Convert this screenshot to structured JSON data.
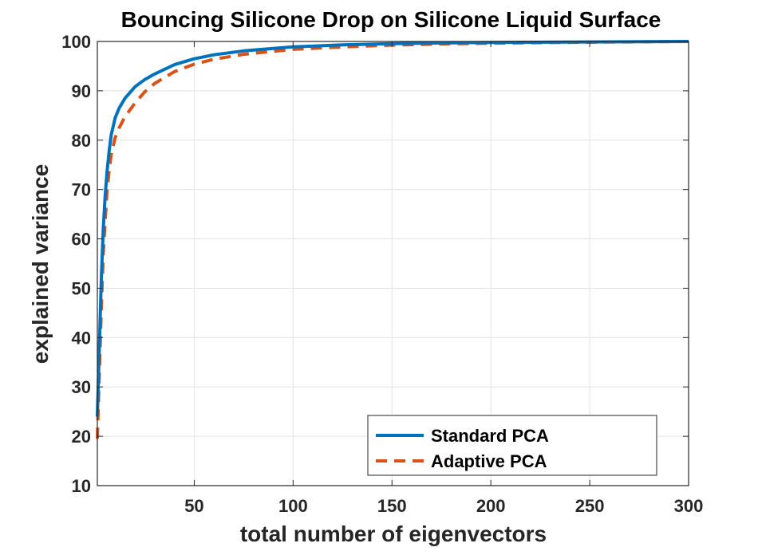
{
  "chart_data": {
    "type": "line",
    "title": "Bouncing  Silicone Drop on Silicone Liquid Surface",
    "xlabel": "total number of eigenvectors",
    "ylabel": "explained variance",
    "xlim": [
      1,
      300
    ],
    "ylim": [
      10,
      100
    ],
    "xticks": [
      50,
      100,
      150,
      200,
      250,
      300
    ],
    "yticks": [
      10,
      20,
      30,
      40,
      50,
      60,
      70,
      80,
      90,
      100
    ],
    "grid": true,
    "legend_position": "bottom-right",
    "series": [
      {
        "name": "Standard PCA",
        "color": "#0072BD",
        "line_style": "solid",
        "x": [
          1,
          2,
          3,
          4,
          5,
          6,
          7,
          8,
          10,
          12,
          15,
          20,
          25,
          30,
          40,
          50,
          60,
          75,
          100,
          125,
          150,
          175,
          200,
          250,
          300
        ],
        "y": [
          24,
          38,
          52,
          62,
          69,
          74,
          78,
          81,
          84.5,
          86.5,
          88.5,
          90.8,
          92.3,
          93.4,
          95.3,
          96.5,
          97.3,
          98.1,
          98.9,
          99.3,
          99.55,
          99.7,
          99.8,
          99.9,
          100
        ]
      },
      {
        "name": "Adaptive PCA",
        "color": "#D95319",
        "line_style": "dashed",
        "x": [
          1,
          2,
          3,
          4,
          5,
          6,
          7,
          8,
          10,
          12,
          15,
          20,
          25,
          30,
          40,
          50,
          60,
          75,
          100,
          125,
          150,
          175,
          200,
          250,
          300
        ],
        "y": [
          19.5,
          33,
          46,
          57,
          64,
          70,
          74,
          77,
          80.5,
          82.5,
          84.8,
          87.5,
          89.8,
          91.5,
          93.9,
          95.4,
          96.4,
          97.4,
          98.4,
          98.9,
          99.25,
          99.5,
          99.65,
          99.85,
          100
        ]
      }
    ]
  }
}
